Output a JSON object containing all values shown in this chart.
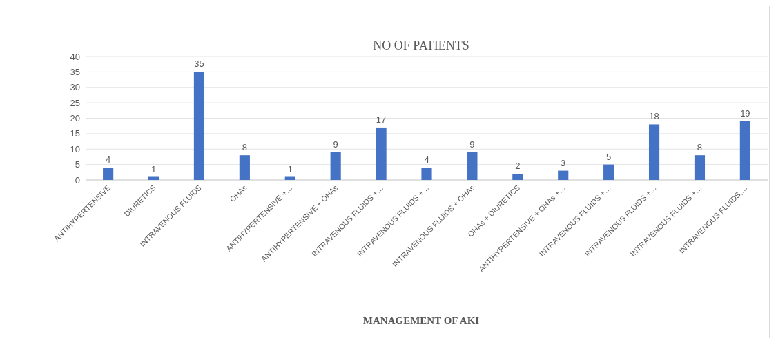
{
  "chart_data": {
    "type": "bar",
    "title": "NO OF PATIENTS",
    "xlabel": "MANAGEMENT OF AKI",
    "categories": [
      "ANTIHYPERTENSIVE",
      "DIURETICS",
      "INTRAVENOUS FLUIDS",
      "OHAs",
      "ANTIHYPERTENSIVE +…",
      "ANTIHYPERTENSIVE + OHAs",
      "INTRAVENOUS FLUIDS +…",
      "INTRAVENOUS FLUIDS +…",
      "INTRAVENOUS FLUIDS + OHAs",
      "OHAs + DIURETICS",
      "ANTIHYPERTENSIVE + OHAs +…",
      "INTRAVENOUS FLUIDS +…",
      "INTRAVENOUS FLUIDS +…",
      "INTRAVENOUS FLUIDS +…",
      "INTRAVENOUS FLUIDS,…"
    ],
    "values": [
      4,
      1,
      35,
      8,
      1,
      9,
      17,
      4,
      9,
      2,
      3,
      5,
      18,
      8,
      19
    ],
    "color": "#4472c4",
    "ylim": [
      0,
      40
    ],
    "yticks": [
      0,
      5,
      10,
      15,
      20,
      25,
      30,
      35,
      40
    ],
    "grid": "y",
    "data_labels": true
  }
}
